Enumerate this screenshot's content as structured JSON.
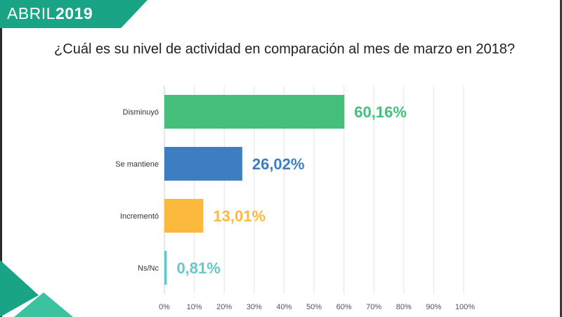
{
  "header": {
    "month": "ABRIL",
    "year": "2019"
  },
  "chart_data": {
    "type": "bar",
    "orientation": "horizontal",
    "title": "¿Cuál es su nivel de actividad en comparación al mes de marzo en 2018?",
    "categories": [
      "Disminuyó",
      "Se mantiene",
      "Incrementó",
      "Ns/Nc"
    ],
    "values": [
      60.16,
      26.02,
      13.01,
      0.81
    ],
    "value_labels": [
      "60,16%",
      "26,02%",
      "13,01%",
      "0,81%"
    ],
    "colors": [
      "#45c07b",
      "#3d7ec2",
      "#fbba3c",
      "#64c7c9"
    ],
    "xlim": [
      0,
      100
    ],
    "xticks": [
      "0%",
      "10%",
      "20%",
      "30%",
      "40%",
      "50%",
      "60%",
      "70%",
      "80%",
      "90%",
      "100%"
    ],
    "grid": true,
    "legend": "none"
  },
  "colors": {
    "brand": "#1aa486",
    "brand_light": "#3cc29f"
  }
}
